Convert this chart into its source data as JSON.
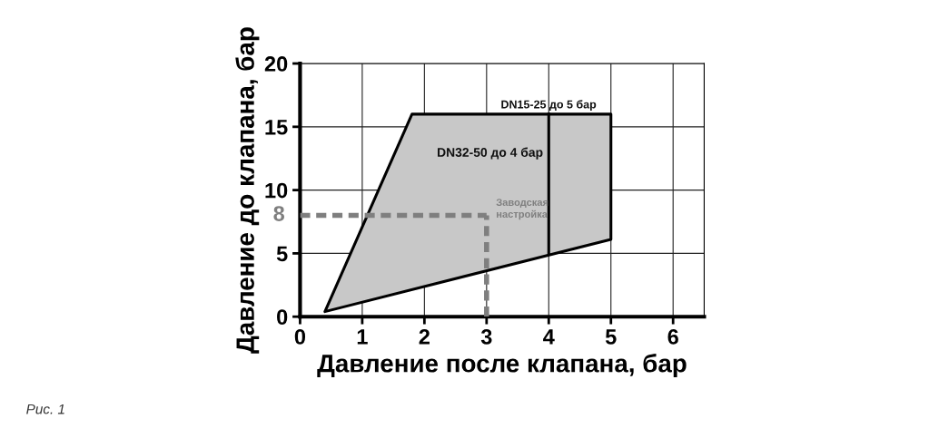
{
  "chart_data": {
    "type": "line",
    "xlabel": "Давление после клапана, бар",
    "ylabel": "Давление до клапана, бар",
    "series": [
      {
        "type": "area",
        "color": "#c8c8c8",
        "x": [
          0.4,
          1.8,
          5,
          5,
          0.4
        ],
        "values": [
          0.4,
          16,
          16,
          6.1,
          0.4
        ]
      },
      {
        "color": "#000000",
        "x": [
          4,
          4
        ],
        "values": [
          5.0,
          16
        ]
      },
      {
        "color": "#7f7f7f",
        "line_style": "dashed",
        "x": [
          0,
          3
        ],
        "values": [
          8,
          8
        ]
      },
      {
        "color": "#7f7f7f",
        "line_style": "dashed",
        "x": [
          3,
          3
        ],
        "values": [
          0,
          8
        ]
      }
    ],
    "xlim": [
      0,
      6.5
    ],
    "ylim": [
      0,
      20
    ],
    "xticks": [
      0,
      1,
      2,
      3,
      4,
      5,
      6
    ],
    "yticks": [
      0,
      5,
      10,
      15,
      20
    ],
    "grid": true,
    "annotations": [
      "DN15-25 до 5 бар",
      "DN32-50 до 4 бар",
      "Заводская\nнастройка",
      {
        "text": "8",
        "x": 0,
        "y": 8
      },
      "Рис. 1"
    ]
  }
}
